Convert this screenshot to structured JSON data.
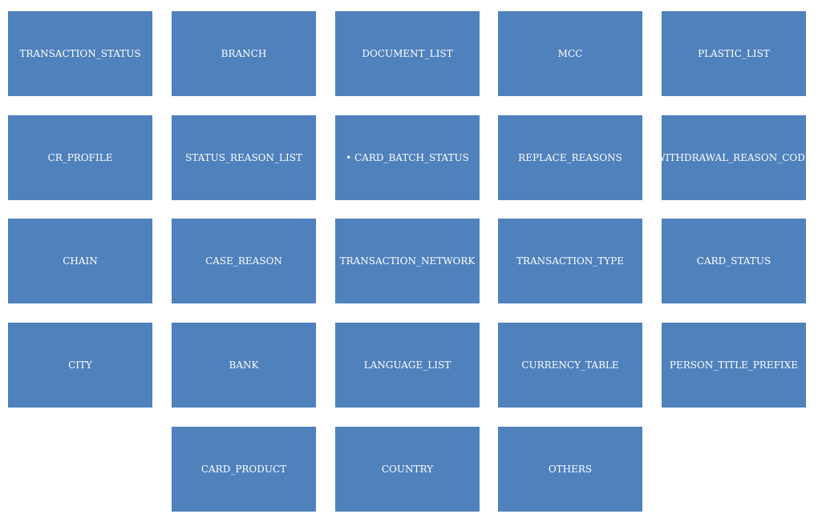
{
  "colors": {
    "tile_fill": "#4f81bd",
    "tile_text": "#ffffff",
    "background": "#ffffff"
  },
  "tiles": [
    {
      "label": "TRANSACTION_STATUS"
    },
    {
      "label": "BRANCH"
    },
    {
      "label": "DOCUMENT_LIST"
    },
    {
      "label": "MCC"
    },
    {
      "label": "PLASTIC_LIST"
    },
    {
      "label": "CR_PROFILE"
    },
    {
      "label": "STATUS_REASON_LIST"
    },
    {
      "label": "• CARD_BATCH_STATUS"
    },
    {
      "label": "REPLACE_REASONS"
    },
    {
      "label": "WITHDRAWAL_REASON_CODE"
    },
    {
      "label": "CHAIN"
    },
    {
      "label": "CASE_REASON"
    },
    {
      "label": "TRANSACTION_NETWORK"
    },
    {
      "label": "TRANSACTION_TYPE"
    },
    {
      "label": "CARD_STATUS"
    },
    {
      "label": "CITY"
    },
    {
      "label": "BANK"
    },
    {
      "label": "LANGUAGE_LIST"
    },
    {
      "label": "CURRENCY_TABLE"
    },
    {
      "label": "PERSON_TITLE_PREFIXE"
    },
    {
      "label": "CARD_PRODUCT"
    },
    {
      "label": "COUNTRY"
    },
    {
      "label": "OTHERS"
    }
  ]
}
